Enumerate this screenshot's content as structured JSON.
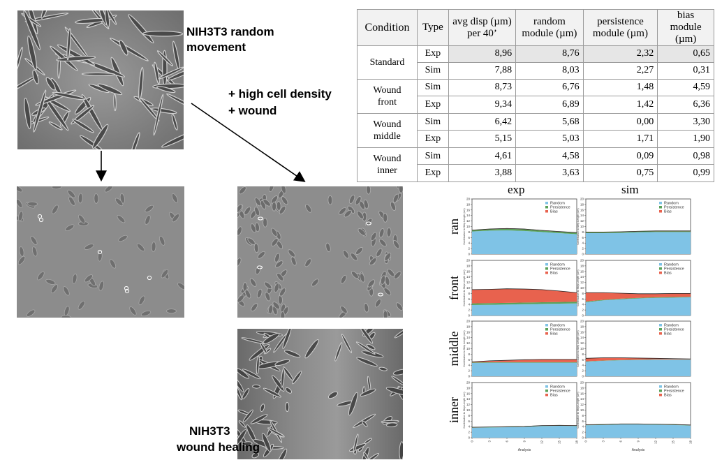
{
  "labels": {
    "random_movement": "NIH3T3 random\nmovement",
    "conditions_line1": "+ high cell density",
    "conditions_line2": "+ wound",
    "wound_healing_line1": "NIH3T3",
    "wound_healing_line2": "wound healing"
  },
  "table": {
    "headers": [
      "Condition",
      "Type",
      "avg disp (µm) per 40’",
      "random module (µm)",
      "persistence module (µm)",
      "bias module (µm)"
    ],
    "groups": [
      {
        "condition": "Standard",
        "rows": [
          {
            "type": "Exp",
            "values": [
              "8,96",
              "8,76",
              "2,32",
              "0,65"
            ]
          },
          {
            "type": "Sim",
            "values": [
              "7,88",
              "8,03",
              "2,27",
              "0,31"
            ]
          }
        ]
      },
      {
        "condition": "Wound front",
        "rows": [
          {
            "type": "Sim",
            "values": [
              "8,73",
              "6,76",
              "1,48",
              "4,59"
            ]
          },
          {
            "type": "Exp",
            "values": [
              "9,34",
              "6,89",
              "1,42",
              "6,36"
            ]
          }
        ]
      },
      {
        "condition": "Wound middle",
        "rows": [
          {
            "type": "Sim",
            "values": [
              "6,42",
              "5,68",
              "0,00",
              "3,30"
            ]
          },
          {
            "type": "Exp",
            "values": [
              "5,15",
              "5,03",
              "1,71",
              "1,90"
            ]
          }
        ]
      },
      {
        "condition": "Wound inner",
        "rows": [
          {
            "type": "Sim",
            "values": [
              "4,61",
              "4,58",
              "0,09",
              "0,98"
            ]
          },
          {
            "type": "Exp",
            "values": [
              "3,88",
              "3,63",
              "0,75",
              "0,99"
            ]
          }
        ]
      }
    ]
  },
  "chart_data": {
    "type": "area",
    "columns": [
      "exp",
      "sim"
    ],
    "rows": [
      "ran",
      "front",
      "middle",
      "inner"
    ],
    "legend": [
      "Random",
      "Persistence",
      "Bias"
    ],
    "colors": {
      "Random": "#7fc3e6",
      "Persistence": "#5aa25a",
      "Bias": "#e8624e"
    },
    "ylabel": "Contribution to Step Length (um)",
    "xlabel": "Analysis",
    "ylim": [
      0,
      20
    ],
    "yticks": [
      0,
      2,
      4,
      6,
      8,
      10,
      12,
      14,
      16,
      18,
      20
    ],
    "xticks": [
      0,
      3,
      6,
      9,
      12,
      15,
      18
    ],
    "panels": [
      {
        "row": "ran",
        "col": "exp",
        "random": [
          8.2,
          8.5,
          8.6,
          8.4,
          8.0,
          7.6,
          7.2
        ],
        "persistence": [
          0.4,
          0.5,
          0.6,
          0.6,
          0.5,
          0.5,
          0.5
        ],
        "bias": [
          0.1,
          0.1,
          0.1,
          0.1,
          0.1,
          0.1,
          0.1
        ]
      },
      {
        "row": "ran",
        "col": "sim",
        "random": [
          7.6,
          7.6,
          7.7,
          7.9,
          8.0,
          8.0,
          8.0
        ],
        "persistence": [
          0.3,
          0.3,
          0.3,
          0.3,
          0.3,
          0.3,
          0.3
        ],
        "bias": [
          0.1,
          0.1,
          0.1,
          0.1,
          0.1,
          0.1,
          0.1
        ]
      },
      {
        "row": "front",
        "col": "exp",
        "random": [
          3.8,
          3.9,
          4.0,
          4.1,
          4.2,
          4.3,
          4.4
        ],
        "persistence": [
          0.6,
          0.6,
          0.6,
          0.6,
          0.6,
          0.6,
          0.6
        ],
        "bias": [
          5.0,
          5.0,
          5.1,
          4.9,
          4.6,
          4.0,
          3.3
        ]
      },
      {
        "row": "front",
        "col": "sim",
        "random": [
          4.8,
          5.5,
          5.9,
          6.2,
          6.4,
          6.5,
          6.6
        ],
        "persistence": [
          0.3,
          0.2,
          0.2,
          0.2,
          0.2,
          0.2,
          0.2
        ],
        "bias": [
          3.2,
          2.6,
          2.0,
          1.5,
          1.3,
          1.3,
          1.2
        ]
      },
      {
        "row": "middle",
        "col": "exp",
        "random": [
          4.8,
          4.9,
          4.9,
          4.9,
          4.9,
          4.9,
          4.9
        ],
        "persistence": [
          0.2,
          0.2,
          0.2,
          0.2,
          0.2,
          0.2,
          0.2
        ],
        "bias": [
          0.2,
          0.5,
          0.7,
          0.9,
          1.0,
          1.0,
          1.0
        ]
      },
      {
        "row": "middle",
        "col": "sim",
        "random": [
          5.3,
          5.6,
          5.8,
          5.9,
          6.0,
          6.0,
          6.0
        ],
        "persistence": [
          0.1,
          0.1,
          0.1,
          0.1,
          0.1,
          0.1,
          0.1
        ],
        "bias": [
          1.1,
          1.0,
          0.8,
          0.6,
          0.4,
          0.3,
          0.2
        ]
      },
      {
        "row": "inner",
        "col": "exp",
        "random": [
          3.6,
          3.7,
          3.8,
          3.9,
          4.2,
          4.3,
          4.2
        ],
        "persistence": [
          0.1,
          0.1,
          0.1,
          0.1,
          0.1,
          0.1,
          0.1
        ],
        "bias": [
          0.1,
          0.1,
          0.1,
          0.1,
          0.1,
          0.1,
          0.1
        ]
      },
      {
        "row": "inner",
        "col": "sim",
        "random": [
          4.5,
          4.6,
          4.8,
          4.8,
          4.7,
          4.6,
          4.4
        ],
        "persistence": [
          0.1,
          0.1,
          0.1,
          0.1,
          0.1,
          0.1,
          0.1
        ],
        "bias": [
          0.1,
          0.1,
          0.1,
          0.1,
          0.1,
          0.1,
          0.1
        ]
      }
    ]
  }
}
